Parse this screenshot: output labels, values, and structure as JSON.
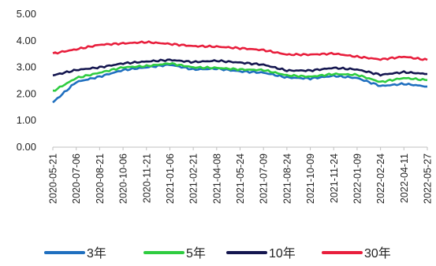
{
  "chart_data": {
    "type": "line",
    "title": "",
    "xlabel": "",
    "ylabel": "",
    "ylim": [
      0,
      5
    ],
    "grid": false,
    "legend_position": "bottom",
    "yticks": [
      "0.00",
      "1.00",
      "2.00",
      "3.00",
      "4.00",
      "5.00"
    ],
    "xticks": [
      "2020-05-21",
      "2020-07-06",
      "2020-08-21",
      "2020-10-06",
      "2020-11-21",
      "2021-01-06",
      "2021-02-21",
      "2021-04-08",
      "2021-05-24",
      "2021-07-09",
      "2021-08-24",
      "2021-10-09",
      "2021-11-24",
      "2022-01-09",
      "2022-02-24",
      "2022-04-11",
      "2022-05-27"
    ],
    "series": [
      {
        "name": "3年",
        "color": "#1f6fbf",
        "values": [
          1.68,
          2.45,
          2.65,
          2.9,
          3.0,
          3.1,
          2.92,
          2.95,
          2.85,
          2.8,
          2.62,
          2.58,
          2.68,
          2.6,
          2.3,
          2.38,
          2.28
        ]
      },
      {
        "name": "5年",
        "color": "#2ecc40",
        "values": [
          2.1,
          2.6,
          2.8,
          3.0,
          3.05,
          3.15,
          3.0,
          2.98,
          2.92,
          2.9,
          2.7,
          2.65,
          2.75,
          2.72,
          2.45,
          2.6,
          2.52
        ]
      },
      {
        "name": "10年",
        "color": "#14164f",
        "values": [
          2.7,
          2.9,
          3.0,
          3.15,
          3.22,
          3.28,
          3.2,
          3.25,
          3.18,
          3.1,
          2.88,
          2.88,
          2.98,
          2.92,
          2.72,
          2.82,
          2.75
        ]
      },
      {
        "name": "30年",
        "color": "#e81e3c",
        "values": [
          3.52,
          3.68,
          3.85,
          3.9,
          3.95,
          3.88,
          3.8,
          3.78,
          3.72,
          3.65,
          3.48,
          3.48,
          3.52,
          3.4,
          3.3,
          3.4,
          3.28
        ]
      }
    ]
  }
}
